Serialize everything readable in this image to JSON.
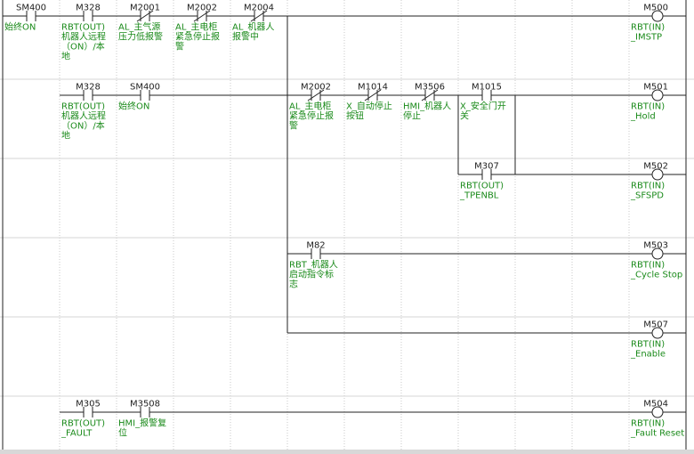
{
  "contacts": [
    {
      "address": "SM400",
      "comment": [
        "始终ON"
      ]
    },
    {
      "address": "M328",
      "comment": [
        "RBT(OUT)",
        "机器人远程",
        "（ON）/本",
        "地"
      ]
    },
    {
      "address": "M2001",
      "comment": [
        "AL_主气源",
        "压力低报警"
      ]
    },
    {
      "address": "M2002",
      "comment": [
        "AL_主电柜",
        "紧急停止报",
        "警"
      ]
    },
    {
      "address": "M2004",
      "comment": [
        "AL_机器人",
        "报警中"
      ]
    },
    {
      "address": "M328",
      "comment": [
        "RBT(OUT)",
        "机器人远程",
        "（ON）/本",
        "地"
      ]
    },
    {
      "address": "SM400",
      "comment": [
        "始终ON"
      ]
    },
    {
      "address": "M2002",
      "comment": [
        "AL_主电柜",
        "紧急停止报",
        "警"
      ]
    },
    {
      "address": "M1014",
      "comment": [
        "X_自动停止",
        "按钮"
      ]
    },
    {
      "address": "M3506",
      "comment": [
        "HMI_机器人",
        "停止"
      ]
    },
    {
      "address": "M1015",
      "comment": [
        "X_安全门开",
        "关"
      ]
    },
    {
      "address": "M307",
      "comment": [
        "RBT(OUT)",
        "_TPENBL"
      ]
    },
    {
      "address": "M82",
      "comment": [
        "RBT_机器人",
        "启动指令标",
        "志"
      ]
    },
    {
      "address": "M305",
      "comment": [
        "RBT(OUT)",
        "_FAULT"
      ]
    },
    {
      "address": "M3508",
      "comment": [
        "HMI_报警复",
        "位"
      ]
    }
  ],
  "coils": [
    {
      "address": "M500",
      "comment": [
        "RBT(IN)",
        "_IMSTP"
      ]
    },
    {
      "address": "M501",
      "comment": [
        "RBT(IN)",
        "_Hold"
      ]
    },
    {
      "address": "M502",
      "comment": [
        "RBT(IN)",
        "_SFSPD"
      ]
    },
    {
      "address": "M503",
      "comment": [
        "RBT(IN)",
        "_Cycle Stop"
      ]
    },
    {
      "address": "M507",
      "comment": [
        "RBT(IN)",
        "_Enable"
      ]
    },
    {
      "address": "M504",
      "comment": [
        "RBT(IN)",
        "_Fault Reset"
      ]
    }
  ]
}
